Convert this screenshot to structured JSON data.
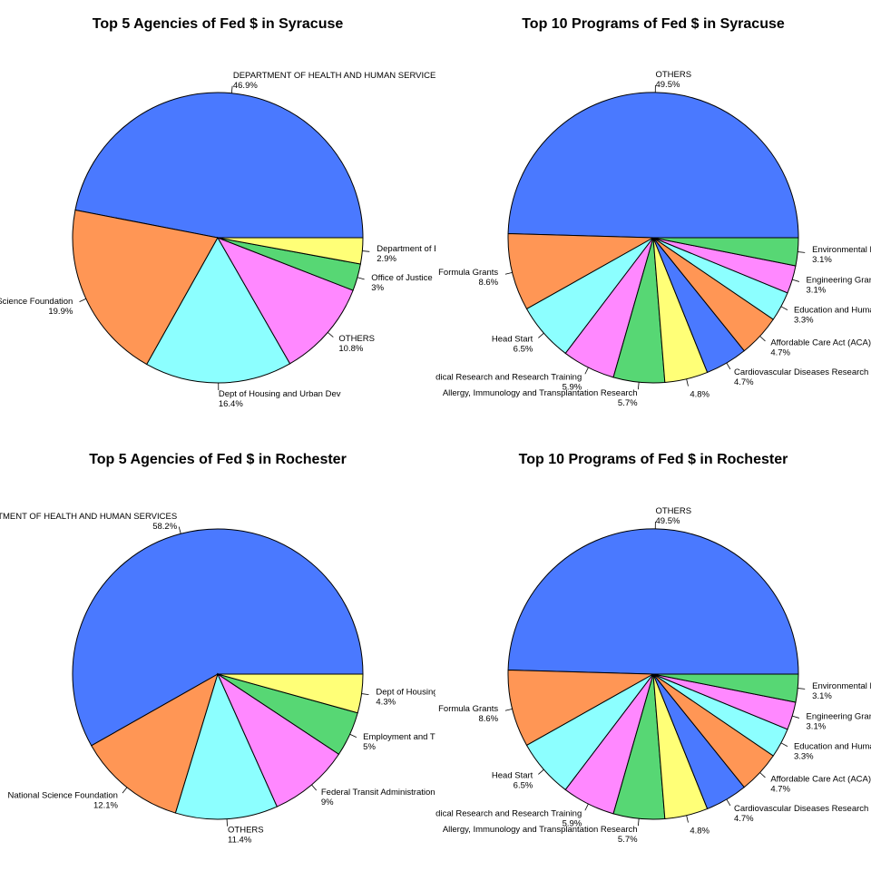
{
  "colors": [
    "#4A79FF",
    "#FF9655",
    "#8CFFFF",
    "#FF88FF",
    "#57D774",
    "#FFFF77"
  ],
  "chart_data": [
    {
      "type": "pie",
      "title": "Top 5 Agencies of Fed $ in Syracuse",
      "slices": [
        {
          "label": "DEPARTMENT OF HEALTH AND HUMAN SERVICES",
          "pct_label": "46.9%",
          "value": 46.9,
          "color": "#4A79FF"
        },
        {
          "label": "National Science Foundation",
          "pct_label": "19.9%",
          "value": 19.9,
          "color": "#FF9655"
        },
        {
          "label": "Dept of Housing and Urban Dev",
          "pct_label": "16.4%",
          "value": 16.4,
          "color": "#8CFFFF"
        },
        {
          "label": "OTHERS",
          "pct_label": "10.8%",
          "value": 10.8,
          "color": "#FF88FF"
        },
        {
          "label": "Office of Justice",
          "pct_label": "3%",
          "value": 3.0,
          "color": "#57D774"
        },
        {
          "label": "Department of Education",
          "pct_label": "2.9%",
          "value": 2.9,
          "color": "#FFFF77"
        }
      ]
    },
    {
      "type": "pie",
      "title": "Top 10 Programs of Fed $ in Syracuse",
      "slices": [
        {
          "label": "OTHERS",
          "pct_label": "49.5%",
          "value": 49.5,
          "color": "#4A79FF"
        },
        {
          "label": "Formula Grants",
          "pct_label": "8.6%",
          "value": 8.6,
          "color": "#FF9655"
        },
        {
          "label": "Head Start",
          "pct_label": "6.5%",
          "value": 6.5,
          "color": "#8CFFFF"
        },
        {
          "label": "Medical Research and Research Training",
          "pct_label": "5.9%",
          "value": 5.9,
          "color": "#FF88FF"
        },
        {
          "label": "Allergy, Immunology and Transplantation Research",
          "pct_label": "5.7%",
          "value": 5.7,
          "color": "#57D774"
        },
        {
          "label": "",
          "pct_label": "4.8%",
          "value": 4.8,
          "color": "#FFFF77"
        },
        {
          "label": "Cardiovascular Diseases Research",
          "pct_label": "4.7%",
          "value": 4.7,
          "color": "#4A79FF"
        },
        {
          "label": "Affordable Care Act (ACA)",
          "pct_label": "4.7%",
          "value": 4.7,
          "color": "#FF9655"
        },
        {
          "label": "Education and Human Resources",
          "pct_label": "3.3%",
          "value": 3.3,
          "color": "#8CFFFF"
        },
        {
          "label": "Engineering Grants",
          "pct_label": "3.1%",
          "value": 3.1,
          "color": "#FF88FF"
        },
        {
          "label": "Environmental Health",
          "pct_label": "3.1%",
          "value": 3.1,
          "color": "#57D774"
        }
      ]
    },
    {
      "type": "pie",
      "title": "Top 5 Agencies of Fed $ in Rochester",
      "slices": [
        {
          "label": "DEPARTMENT OF HEALTH AND HUMAN SERVICES",
          "pct_label": "58.2%",
          "value": 58.2,
          "color": "#4A79FF"
        },
        {
          "label": "National Science Foundation",
          "pct_label": "12.1%",
          "value": 12.1,
          "color": "#FF9655"
        },
        {
          "label": "OTHERS",
          "pct_label": "11.4%",
          "value": 11.4,
          "color": "#8CFFFF"
        },
        {
          "label": "Federal Transit Administration",
          "pct_label": "9%",
          "value": 9.0,
          "color": "#FF88FF"
        },
        {
          "label": "Employment and Training Administration",
          "pct_label": "5%",
          "value": 5.0,
          "color": "#57D774"
        },
        {
          "label": "Dept of Housing and Urban Dev",
          "pct_label": "4.3%",
          "value": 4.3,
          "color": "#FFFF77"
        }
      ]
    },
    {
      "type": "pie",
      "title": "Top 10 Programs of Fed $ in Rochester",
      "slices": [
        {
          "label": "OTHERS",
          "pct_label": "49.5%",
          "value": 49.5,
          "color": "#4A79FF"
        },
        {
          "label": "Formula Grants",
          "pct_label": "8.6%",
          "value": 8.6,
          "color": "#FF9655"
        },
        {
          "label": "Head Start",
          "pct_label": "6.5%",
          "value": 6.5,
          "color": "#8CFFFF"
        },
        {
          "label": "Medical Research and Research Training",
          "pct_label": "5.9%",
          "value": 5.9,
          "color": "#FF88FF"
        },
        {
          "label": "Allergy, Immunology and Transplantation Research",
          "pct_label": "5.7%",
          "value": 5.7,
          "color": "#57D774"
        },
        {
          "label": "",
          "pct_label": "4.8%",
          "value": 4.8,
          "color": "#FFFF77"
        },
        {
          "label": "Cardiovascular Diseases Research",
          "pct_label": "4.7%",
          "value": 4.7,
          "color": "#4A79FF"
        },
        {
          "label": "Affordable Care Act (ACA)",
          "pct_label": "4.7%",
          "value": 4.7,
          "color": "#FF9655"
        },
        {
          "label": "Education and Human Resources",
          "pct_label": "3.3%",
          "value": 3.3,
          "color": "#8CFFFF"
        },
        {
          "label": "Engineering Grants",
          "pct_label": "3.1%",
          "value": 3.1,
          "color": "#FF88FF"
        },
        {
          "label": "Environmental Health",
          "pct_label": "3.1%",
          "value": 3.1,
          "color": "#57D774"
        }
      ]
    }
  ]
}
